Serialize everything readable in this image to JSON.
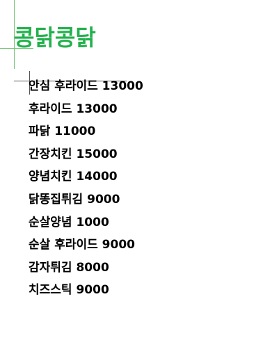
{
  "page": {
    "title": "콩닭콩닭",
    "title_color": "#22b14c"
  },
  "menu": {
    "items": [
      {
        "text": "안심 후라이드 13000"
      },
      {
        "text": "후라이드 13000"
      },
      {
        "text": "파닭 11000"
      },
      {
        "text": "간장치킨 15000"
      },
      {
        "text": "양념치킨 14000"
      },
      {
        "text": "닭똥집튀김 9000"
      },
      {
        "text": "순살양념 1000"
      },
      {
        "text": "순살 후라이드 9000"
      },
      {
        "text": "감자튀김 8000"
      },
      {
        "text": "치즈스틱 9000"
      }
    ]
  }
}
